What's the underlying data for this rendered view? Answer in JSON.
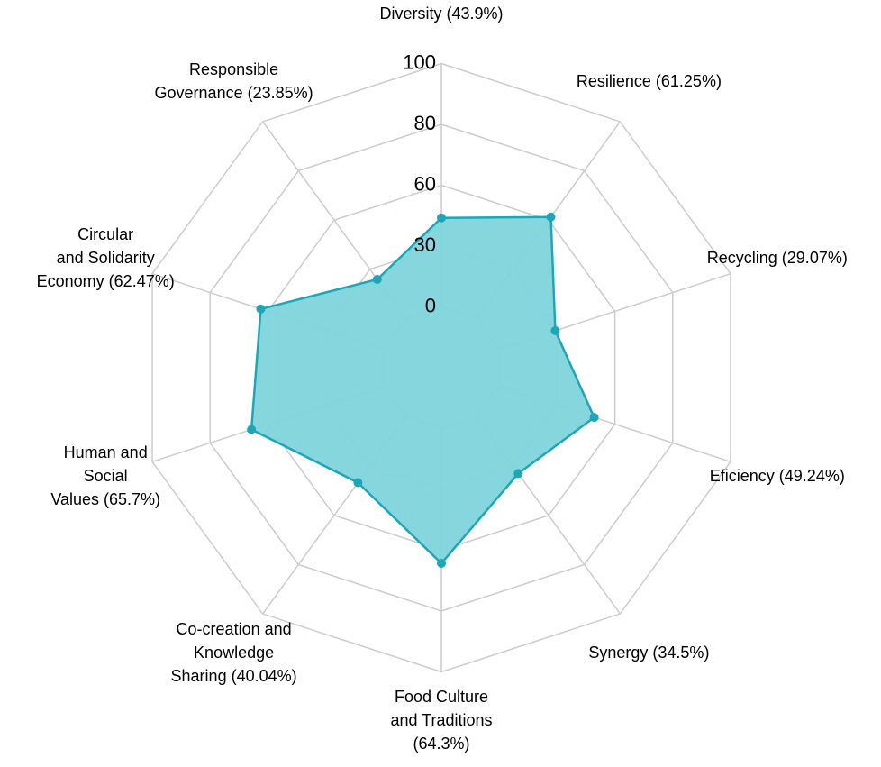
{
  "chart_data": {
    "type": "radar",
    "categories": [
      [
        "Diversity (43.9%)"
      ],
      [
        "Resilience (61.25%)"
      ],
      [
        "Recycling (29.07%)"
      ],
      [
        "Eficiency (49.24%)"
      ],
      [
        "Synergy (34.5%)"
      ],
      [
        "Food Culture",
        "and Traditions",
        "(64.3%)"
      ],
      [
        "Co-creation and",
        "Knowledge",
        "Sharing (40.04%)"
      ],
      [
        "Human and",
        "Social",
        "Values (65.7%)"
      ],
      [
        "Circular",
        "and Solidarity",
        "Economy (62.47%)"
      ],
      [
        "Responsible",
        "Governance (23.85%)"
      ]
    ],
    "values": [
      43.9,
      61.25,
      29.07,
      49.24,
      34.5,
      64.3,
      40.04,
      65.7,
      62.47,
      23.85
    ],
    "color": "#1aa8b8",
    "fill": "#7fd4dc",
    "rlim": [
      0,
      100
    ],
    "rticks": [
      0,
      30,
      60,
      80,
      100
    ],
    "grid": true
  }
}
